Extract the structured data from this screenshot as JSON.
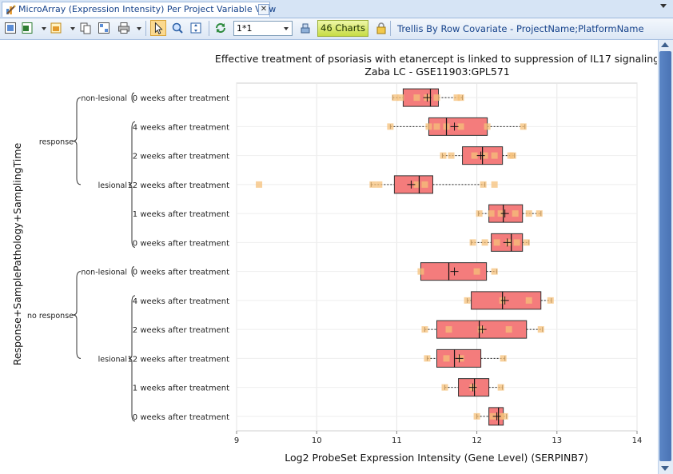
{
  "tab": {
    "title": "MicroArray (Expression Intensity) Per Project Variable View",
    "close_glyph": "✕"
  },
  "toolbar": {
    "zoom_value": "1*1",
    "charts_label": "46 Charts",
    "trellis_label": "Trellis By Row Covariate - ProjectName;PlatformName",
    "icons": [
      "select-all-icon",
      "export-excel-icon",
      "export-image-icon",
      "copy-icon",
      "layout-icon",
      "print-icon",
      "pointer-icon",
      "zoom-region-icon",
      "fit-icon",
      "refresh-icon",
      "column-icon",
      "lock-icon"
    ]
  },
  "chart_data": {
    "type": "box",
    "title": "Effective treatment of psoriasis with etanercept is linked to suppression of IL17 signaling",
    "subtitle": "Zaba LC - GSE11903:GPL571",
    "xlabel": "Log2 ProbeSet Expression Intensity (Gene Level) (SERPINB7)",
    "ylabel": "Response+SamplePathology+SamplingTime",
    "xlim": [
      9,
      14
    ],
    "xticks": [
      "9",
      "10",
      "11",
      "12",
      "13",
      "14"
    ],
    "grid": true,
    "box_color": "#f47c7c",
    "point_color": "#f6c07a",
    "groups": [
      {
        "label": "response",
        "subgroups": [
          {
            "label": "non-lesional",
            "rows": [
              {
                "label": "0 weeks after treatment",
                "min": 10.95,
                "q1": 11.08,
                "median": 11.42,
                "q3": 11.52,
                "max": 11.82,
                "mean": 11.38,
                "points": [
                  10.98,
                  11.05,
                  11.25,
                  11.38,
                  11.5,
                  11.75,
                  11.8
                ]
              }
            ]
          },
          {
            "label": "lesional",
            "rows": [
              {
                "label": "4 weeks after treatment",
                "min": 10.92,
                "q1": 11.4,
                "median": 11.62,
                "q3": 12.13,
                "max": 12.6,
                "mean": 11.72,
                "points": [
                  10.92,
                  11.4,
                  11.5,
                  11.62,
                  11.8,
                  12.13,
                  12.58
                ]
              },
              {
                "label": "2 weeks after treatment",
                "min": 11.57,
                "q1": 11.82,
                "median": 12.07,
                "q3": 12.32,
                "max": 12.47,
                "mean": 12.05,
                "points": [
                  11.58,
                  11.68,
                  11.97,
                  12.1,
                  12.22,
                  12.42,
                  12.45
                ]
              },
              {
                "label": "12 weeks after treatment",
                "min": 10.68,
                "q1": 10.97,
                "median": 11.28,
                "q3": 11.45,
                "max": 12.1,
                "mean": 11.18,
                "points": [
                  9.28,
                  10.7,
                  10.78,
                  11.25,
                  11.35,
                  12.08,
                  12.22
                ]
              },
              {
                "label": "1 weeks after treatment",
                "min": 12.02,
                "q1": 12.15,
                "median": 12.33,
                "q3": 12.57,
                "max": 12.8,
                "mean": 12.35,
                "points": [
                  12.03,
                  12.18,
                  12.3,
                  12.48,
                  12.65,
                  12.78
                ]
              },
              {
                "label": "0 weeks after treatment",
                "min": 11.93,
                "q1": 12.18,
                "median": 12.43,
                "q3": 12.57,
                "max": 12.65,
                "mean": 12.38,
                "points": [
                  11.95,
                  12.1,
                  12.25,
                  12.4,
                  12.5,
                  12.62
                ]
              }
            ]
          }
        ]
      },
      {
        "label": "no response",
        "subgroups": [
          {
            "label": "non-lesional",
            "rows": [
              {
                "label": "0 weeks after treatment",
                "min": 11.3,
                "q1": 11.3,
                "median": 11.65,
                "q3": 12.12,
                "max": 12.25,
                "mean": 11.72,
                "points": [
                  11.3,
                  12.0,
                  12.22
                ]
              }
            ]
          },
          {
            "label": "lesional",
            "rows": [
              {
                "label": "4 weeks after treatment",
                "min": 11.88,
                "q1": 11.93,
                "median": 12.32,
                "q3": 12.8,
                "max": 12.93,
                "mean": 12.35,
                "points": [
                  11.88,
                  12.32,
                  12.65,
                  12.92
                ]
              },
              {
                "label": "2 weeks after treatment",
                "min": 11.35,
                "q1": 11.5,
                "median": 12.03,
                "q3": 12.62,
                "max": 12.82,
                "mean": 12.07,
                "points": [
                  11.35,
                  11.65,
                  12.05,
                  12.4,
                  12.8
                ]
              },
              {
                "label": "12 weeks after treatment",
                "min": 11.38,
                "q1": 11.5,
                "median": 11.72,
                "q3": 12.05,
                "max": 12.35,
                "mean": 11.78,
                "points": [
                  11.38,
                  11.62,
                  11.8,
                  12.33
                ]
              },
              {
                "label": "1 weeks after treatment",
                "min": 11.6,
                "q1": 11.77,
                "median": 11.97,
                "q3": 12.15,
                "max": 12.32,
                "mean": 11.95,
                "points": [
                  11.6,
                  11.95,
                  12.3
                ]
              },
              {
                "label": "0 weeks after treatment",
                "min": 12.0,
                "q1": 12.15,
                "median": 12.27,
                "q3": 12.33,
                "max": 12.37,
                "mean": 12.25,
                "points": [
                  12.0,
                  12.2,
                  12.3,
                  12.35
                ]
              }
            ]
          }
        ]
      }
    ]
  }
}
